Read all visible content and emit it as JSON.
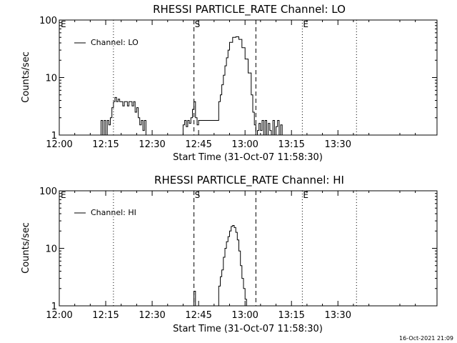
{
  "footer_timestamp": "16-Oct-2021 21:09",
  "colors": {
    "line": "#000000",
    "background": "#ffffff"
  },
  "chart_data": [
    {
      "type": "line",
      "title": "RHESSI PARTICLE_RATE Channel: LO",
      "xlabel": "Start Time (31-Oct-07 11:58:30)",
      "ylabel": "Counts/sec",
      "yscale": "log",
      "ylim": [
        1,
        100
      ],
      "xlim": [
        0,
        122
      ],
      "x_units": "minutes after 12:00",
      "yticks": [
        1,
        10,
        100
      ],
      "ytick_labels": [
        "1",
        "10",
        "100"
      ],
      "xticks": [
        0,
        15,
        30,
        45,
        60,
        75,
        90
      ],
      "xtick_labels": [
        "12:00",
        "12:15",
        "12:30",
        "12:45",
        "13:00",
        "13:15",
        "13:30"
      ],
      "legend": {
        "label": "Channel: LO",
        "position": "top-left"
      },
      "markers": [
        {
          "x": -2,
          "label": "E",
          "style": "dotted"
        },
        {
          "x": 17.5,
          "label": "",
          "style": "dotted"
        },
        {
          "x": 43.5,
          "label": "S",
          "style": "dashed"
        },
        {
          "x": 63.5,
          "label": "",
          "style": "dashed"
        },
        {
          "x": 78.5,
          "label": "E",
          "style": "dotted"
        },
        {
          "x": 96,
          "label": "",
          "style": "dotted"
        }
      ],
      "series": [
        {
          "name": "Channel: LO",
          "x": [
            13,
            13.5,
            14,
            14.5,
            15,
            15.5,
            16,
            16.5,
            17,
            17.5,
            18,
            18.5,
            19,
            19.5,
            20,
            20.5,
            21,
            21.5,
            22,
            22.5,
            23,
            23.5,
            24,
            24.5,
            25,
            25.5,
            26,
            26.5,
            27,
            27.5,
            28,
            39.5,
            40,
            40.5,
            41,
            41.5,
            42,
            42.5,
            43,
            43.5,
            44,
            44.5,
            45,
            46,
            47,
            48,
            49,
            50,
            51,
            51.5,
            52,
            52.5,
            53,
            53.5,
            54,
            54.5,
            55,
            56,
            57,
            58,
            59,
            60,
            61,
            62,
            62.5,
            63,
            63.5,
            64,
            64.5,
            65,
            65.5,
            66,
            66.5,
            67,
            67.5,
            68,
            68.5,
            69,
            69.5,
            70,
            70.5,
            71,
            71.5,
            72
          ],
          "values": [
            1,
            1.8,
            1,
            1.8,
            1,
            1.8,
            1.5,
            2,
            3,
            3.8,
            4.5,
            3.8,
            4.2,
            3.8,
            3.8,
            3.2,
            3.8,
            3.8,
            3.2,
            3.8,
            3.8,
            3.2,
            3.8,
            2.5,
            3,
            2,
            1.5,
            1.8,
            1.2,
            1.8,
            1,
            1,
            1.5,
            1.8,
            1.4,
            1.8,
            1.6,
            2,
            2.8,
            3.8,
            2,
            1.5,
            1.8,
            1.8,
            1.8,
            1.8,
            1.8,
            1.8,
            1.8,
            3.8,
            5,
            7.5,
            11,
            16,
            22,
            30,
            41,
            50,
            51,
            46,
            33,
            21,
            12,
            5,
            2.5,
            1.5,
            1,
            1.2,
            1.6,
            1.2,
            1.8,
            1,
            1.8,
            1,
            1.6,
            1.2,
            1,
            1.8,
            1,
            1.4,
            1.8,
            1,
            1.5,
            1
          ]
        }
      ]
    },
    {
      "type": "line",
      "title": "RHESSI PARTICLE_RATE Channel: HI",
      "xlabel": "Start Time (31-Oct-07 11:58:30)",
      "ylabel": "Counts/sec",
      "yscale": "log",
      "ylim": [
        1,
        100
      ],
      "xlim": [
        0,
        122
      ],
      "x_units": "minutes after 12:00",
      "yticks": [
        1,
        10,
        100
      ],
      "ytick_labels": [
        "1",
        "10",
        "100"
      ],
      "xticks": [
        0,
        15,
        30,
        45,
        60,
        75,
        90
      ],
      "xtick_labels": [
        "12:00",
        "12:15",
        "12:30",
        "12:45",
        "13:00",
        "13:15",
        "13:30"
      ],
      "legend": {
        "label": "Channel: HI",
        "position": "top-left"
      },
      "markers": [
        {
          "x": -2,
          "label": "E",
          "style": "dotted"
        },
        {
          "x": 17.5,
          "label": "",
          "style": "dotted"
        },
        {
          "x": 43.5,
          "label": "S",
          "style": "dashed"
        },
        {
          "x": 63.5,
          "label": "",
          "style": "dashed"
        },
        {
          "x": 78.5,
          "label": "E",
          "style": "dotted"
        },
        {
          "x": 96,
          "label": "",
          "style": "dotted"
        }
      ],
      "series": [
        {
          "name": "Channel: HI",
          "x": [
            43,
            43.5,
            44,
            44.5,
            51,
            51.5,
            52,
            52.5,
            53,
            53.5,
            54,
            54.5,
            55,
            55.5,
            56,
            56.5,
            57,
            57.5,
            58,
            58.5,
            59,
            59.5,
            60,
            60.5
          ],
          "values": [
            1,
            1.8,
            1,
            1,
            1,
            2.2,
            3.2,
            4.2,
            7,
            10,
            13,
            16,
            20,
            24,
            25,
            23,
            19,
            14,
            9,
            5,
            3,
            2,
            1.3,
            1
          ]
        }
      ]
    }
  ]
}
